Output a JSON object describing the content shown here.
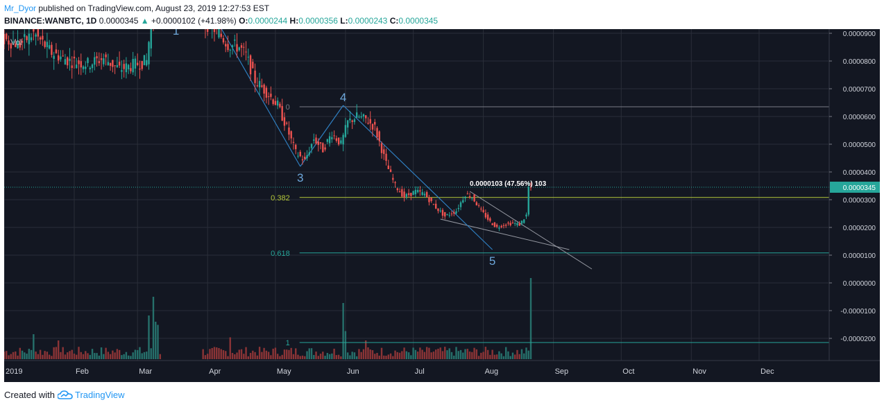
{
  "header": {
    "author": "Mr_Dyor",
    "published_text": "published on TradingView.com, August 23, 2019 12:27:53 EST",
    "symbol": "BINANCE:WANBTC, 1D",
    "last": "0.0000345",
    "change_arrow": "▲",
    "change": "+0.0000102 (+41.98%)",
    "o_label": "O:",
    "o_value": "0.0000244",
    "h_label": "H:",
    "h_value": "0.0000356",
    "l_label": "L:",
    "l_value": "0.0000243",
    "c_label": "C:",
    "c_value": "0.0000345"
  },
  "footer": {
    "created_with": "Created with",
    "brand": "TradingView",
    "brand_icon": "tradingview-cloud-icon"
  },
  "colors": {
    "background": "#131722",
    "grid": "#2a2e39",
    "up": "#26a69a",
    "down": "#ef5350",
    "vol_up": "#26706b",
    "vol_down": "#8b3436",
    "wave_line": "#2f7fc1",
    "wave_label": "#6ea8dc",
    "fib_0": "#787b86",
    "fib_382": "#b5c93a",
    "fib_618": "#26a69a",
    "price_line": "#26a69a",
    "trend_line": "#9598a1"
  },
  "chart_data": {
    "type": "candlestick",
    "symbol": "BINANCE:WANBTC",
    "interval": "1D",
    "pane_label": "Vol",
    "ylim": [
      -2.8e-05,
      9.15e-05
    ],
    "y_ticks": [
      {
        "value": 9e-05,
        "label": "0.0000900"
      },
      {
        "value": 8e-05,
        "label": "0.0000800"
      },
      {
        "value": 7e-05,
        "label": "0.0000700"
      },
      {
        "value": 6e-05,
        "label": "0.0000600"
      },
      {
        "value": 5e-05,
        "label": "0.0000500"
      },
      {
        "value": 4e-05,
        "label": "0.0000400"
      },
      {
        "value": 3e-05,
        "label": "0.0000300"
      },
      {
        "value": 2e-05,
        "label": "0.0000200"
      },
      {
        "value": 1e-05,
        "label": "0.0000100"
      },
      {
        "value": 0,
        "label": "0.0000000"
      },
      {
        "value": -1e-05,
        "label": "-0.0000100"
      },
      {
        "value": -2e-05,
        "label": "-0.0000200"
      }
    ],
    "x_range_days": [
      0,
      365
    ],
    "x_ticks": [
      {
        "day": 0,
        "label": "2019"
      },
      {
        "day": 31,
        "label": "Feb"
      },
      {
        "day": 59,
        "label": "Mar"
      },
      {
        "day": 90,
        "label": "Apr"
      },
      {
        "day": 120,
        "label": "May"
      },
      {
        "day": 151,
        "label": "Jun"
      },
      {
        "day": 181,
        "label": "Jul"
      },
      {
        "day": 212,
        "label": "Aug"
      },
      {
        "day": 243,
        "label": "Sep"
      },
      {
        "day": 273,
        "label": "Oct"
      },
      {
        "day": 304,
        "label": "Nov"
      },
      {
        "day": 334,
        "label": "Dec"
      }
    ],
    "price_path": [
      [
        0,
        8.8e-05
      ],
      [
        8,
        8.6e-05
      ],
      [
        14,
        9e-05
      ],
      [
        22,
        8.3e-05
      ],
      [
        30,
        8e-05
      ],
      [
        38,
        7.9e-05
      ],
      [
        45,
        8.1e-05
      ],
      [
        52,
        7.7e-05
      ],
      [
        60,
        7.9e-05
      ],
      [
        64,
        8e-05
      ],
      [
        66,
        9.4e-05
      ],
      [
        69,
        9.7e-05
      ],
      [
        88,
        9.5e-05
      ],
      [
        95,
        9.1e-05
      ],
      [
        100,
        8.6e-05
      ],
      [
        105,
        8.5e-05
      ],
      [
        108,
        8.2e-05
      ],
      [
        112,
        7.3e-05
      ],
      [
        118,
        6.8e-05
      ],
      [
        122,
        6.4e-05
      ],
      [
        126,
        5.6e-05
      ],
      [
        130,
        4.7e-05
      ],
      [
        134,
        4.4e-05
      ],
      [
        138,
        5.2e-05
      ],
      [
        142,
        4.8e-05
      ],
      [
        146,
        5.4e-05
      ],
      [
        150,
        5e-05
      ],
      [
        153,
        5.8e-05
      ],
      [
        157,
        6e-05
      ],
      [
        161,
        5.9e-05
      ],
      [
        165,
        5.6e-05
      ],
      [
        170,
        4.3e-05
      ],
      [
        174,
        3.5e-05
      ],
      [
        178,
        3.1e-05
      ],
      [
        183,
        3.3e-05
      ],
      [
        187,
        3.2e-05
      ],
      [
        191,
        2.8e-05
      ],
      [
        196,
        2.4e-05
      ],
      [
        201,
        2.6e-05
      ],
      [
        205,
        3.2e-05
      ],
      [
        208,
        3.1e-05
      ],
      [
        212,
        2.6e-05
      ],
      [
        216,
        2.2e-05
      ],
      [
        219,
        2e-05
      ],
      [
        222,
        2.1e-05
      ],
      [
        226,
        2.15e-05
      ],
      [
        229,
        2.1e-05
      ],
      [
        232,
        2.44e-05
      ],
      [
        233,
        3.45e-05
      ]
    ],
    "volume_spikes": [
      [
        13,
        0.4
      ],
      [
        24,
        0.3
      ],
      [
        64,
        0.7
      ],
      [
        66,
        1.0
      ],
      [
        67,
        0.6
      ],
      [
        68,
        0.55
      ],
      [
        100,
        0.35
      ],
      [
        150,
        0.9
      ],
      [
        151,
        0.45
      ],
      [
        160,
        0.3
      ],
      [
        233,
        1.3
      ]
    ],
    "last_price": {
      "value": 3.45e-05,
      "label": "0.0000345"
    },
    "fib_levels": [
      {
        "level": "0",
        "value": 6.35e-05,
        "x_start_day": 127
      },
      {
        "level": "0.382",
        "value": 3.08e-05,
        "x_start_day": 127
      },
      {
        "level": "0.618",
        "value": 1.08e-05,
        "x_start_day": 127
      },
      {
        "level": "1",
        "value": -2.15e-05,
        "x_start_day": 127
      }
    ],
    "elliott_wave": [
      {
        "label": "1",
        "day": 76,
        "value": 8.8e-05
      },
      {
        "label": "3",
        "day": 131,
        "value": 4.2e-05
      },
      {
        "label": "4",
        "day": 150,
        "value": 6.4e-05
      },
      {
        "label": "5",
        "day": 216,
        "value": 1.2e-05
      }
    ],
    "wave_line": [
      [
        92,
        9.75e-05
      ],
      [
        131,
        4.2e-05
      ],
      [
        150,
        6.4e-05
      ],
      [
        216,
        1.2e-05
      ]
    ],
    "trendlines": [
      [
        [
          193,
          2.3e-05
        ],
        [
          250,
          1.2e-05
        ]
      ],
      [
        [
          206,
          3.3e-05
        ],
        [
          260,
          5e-06
        ]
      ]
    ],
    "measure_label": "0.0000103 (47.56%) 103",
    "measure_day": 206,
    "measure_value": 3.47e-05
  }
}
